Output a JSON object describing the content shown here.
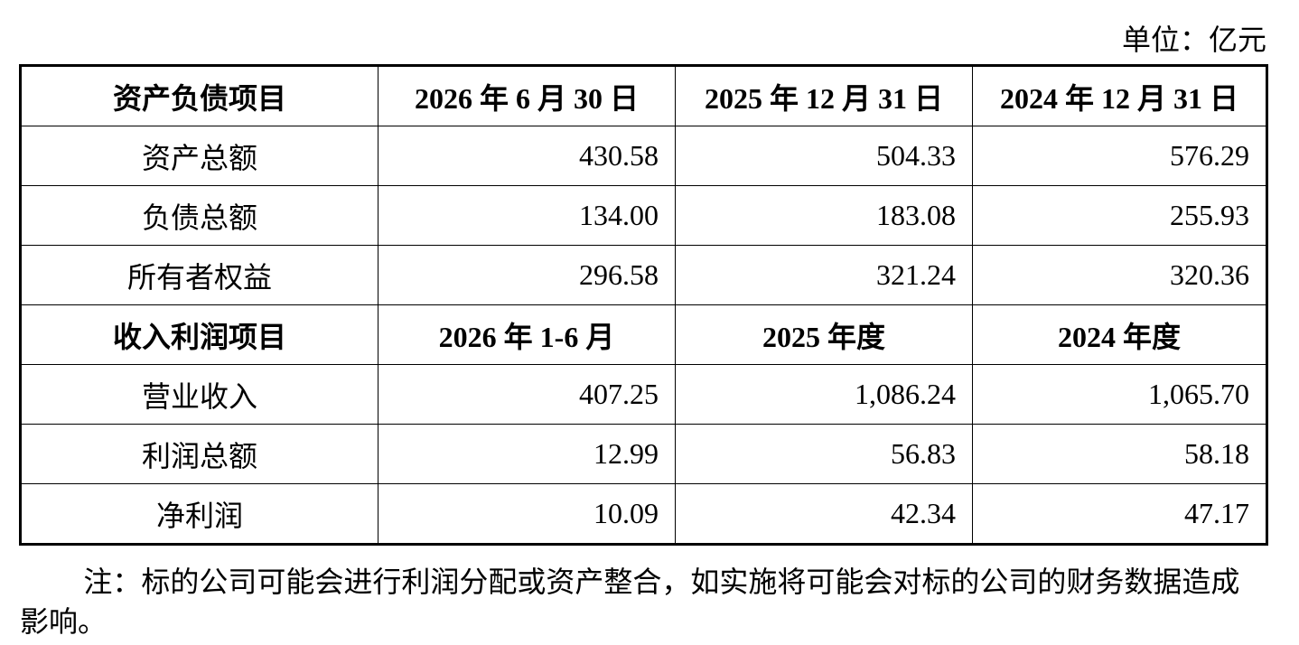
{
  "unit": "单位：亿元",
  "table": {
    "sections": [
      {
        "header": [
          "资产负债项目",
          "2026 年 6 月 30 日",
          "2025 年 12 月 31 日",
          "2024 年 12 月 31 日"
        ],
        "rows": [
          [
            "资产总额",
            "430.58",
            "504.33",
            "576.29"
          ],
          [
            "负债总额",
            "134.00",
            "183.08",
            "255.93"
          ],
          [
            "所有者权益",
            "296.58",
            "321.24",
            "320.36"
          ]
        ]
      },
      {
        "header": [
          "收入利润项目",
          "2026 年 1-6 月",
          "2025 年度",
          "2024 年度"
        ],
        "rows": [
          [
            "营业收入",
            "407.25",
            "1,086.24",
            "1,065.70"
          ],
          [
            "利润总额",
            "12.99",
            "56.83",
            "58.18"
          ],
          [
            "净利润",
            "10.09",
            "42.34",
            "47.17"
          ]
        ]
      }
    ]
  },
  "note": "注：标的公司可能会进行利润分配或资产整合，如实施将可能会对标的公司的财务数据造成影响。"
}
